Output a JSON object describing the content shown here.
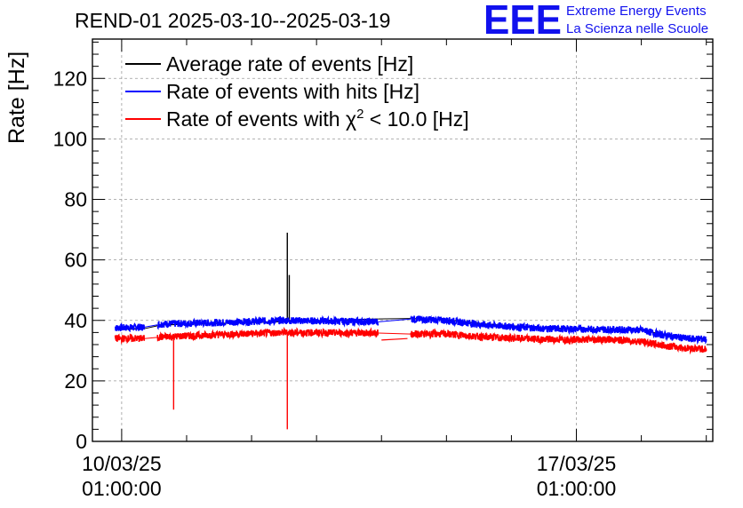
{
  "chart_data": {
    "type": "line",
    "title": "REND-01 2025-03-10--2025-03-19",
    "ylabel": "Rate [Hz]",
    "xlabel": "",
    "ylim": [
      0,
      133
    ],
    "xlim_days": [
      -0.45,
      9.1
    ],
    "yticks": [
      0,
      20,
      40,
      60,
      80,
      100,
      120
    ],
    "ytick_labels": [
      "0",
      "20",
      "40",
      "60",
      "80",
      "100",
      "120"
    ],
    "xticks": [
      {
        "day": 0,
        "date": "10/03/25",
        "time": "01:00:00"
      },
      {
        "day": 7,
        "date": "17/03/25",
        "time": "01:00:00"
      }
    ],
    "grid": true,
    "legend": [
      {
        "label": "Average rate of events [Hz]",
        "color": "#000000"
      },
      {
        "label": "Rate of events with hits [Hz]",
        "color": "#0000ff"
      },
      {
        "label_pre": "Rate of events with χ",
        "label_sup": "2",
        "label_post": " < 10.0 [Hz]",
        "color": "#ff0000"
      }
    ],
    "series": [
      {
        "name": "Average rate of events [Hz]",
        "color": "#000000",
        "points": [
          [
            -0.1,
            37.0
          ],
          [
            0.4,
            37.3
          ],
          [
            0.6,
            38.5
          ],
          [
            1.5,
            39.0
          ],
          [
            2.5,
            39.6
          ],
          [
            4.0,
            40.5
          ],
          [
            4.2,
            40.8
          ],
          [
            5.0,
            40.2
          ],
          [
            5.6,
            38.8
          ],
          [
            6.5,
            37.5
          ],
          [
            7.5,
            37.0
          ],
          [
            8.0,
            36.8
          ],
          [
            8.3,
            35.5
          ],
          [
            8.7,
            34.2
          ],
          [
            9.0,
            34.0
          ]
        ],
        "spikes": [
          [
            2.55,
            69.0
          ],
          [
            2.58,
            55.0
          ]
        ]
      },
      {
        "name": "Rate of events with hits [Hz]",
        "color": "#0000ff",
        "noise": 1.2,
        "points": [
          [
            -0.1,
            37.5
          ],
          [
            0.4,
            37.8
          ],
          [
            0.6,
            38.8
          ],
          [
            1.5,
            39.3
          ],
          [
            2.5,
            40.0
          ],
          [
            4.0,
            39.5
          ],
          [
            4.2,
            39.3
          ],
          [
            4.4,
            40.5
          ],
          [
            5.0,
            40.0
          ],
          [
            5.6,
            38.5
          ],
          [
            6.5,
            37.3
          ],
          [
            7.5,
            37.0
          ],
          [
            8.0,
            36.8
          ],
          [
            8.3,
            35.3
          ],
          [
            8.7,
            34.0
          ],
          [
            9.0,
            33.8
          ]
        ]
      },
      {
        "name": "Rate of events with χ2 < 10.0 [Hz]",
        "color": "#ff0000",
        "noise": 1.2,
        "points": [
          [
            -0.1,
            34.0
          ],
          [
            0.4,
            34.0
          ],
          [
            0.6,
            34.5
          ],
          [
            1.5,
            35.3
          ],
          [
            2.5,
            36.0
          ],
          [
            4.0,
            35.8
          ],
          [
            4.2,
            35.5
          ],
          [
            4.4,
            35.5
          ],
          [
            5.0,
            35.5
          ],
          [
            5.6,
            34.5
          ],
          [
            6.5,
            33.7
          ],
          [
            7.5,
            33.7
          ],
          [
            8.0,
            33.0
          ],
          [
            8.3,
            31.8
          ],
          [
            8.7,
            30.8
          ],
          [
            9.0,
            30.5
          ]
        ],
        "dips": [
          [
            0.8,
            10.5
          ],
          [
            2.55,
            4.0
          ]
        ],
        "gap_segment": [
          [
            4.0,
            33.5
          ],
          [
            4.4,
            34.0
          ]
        ]
      }
    ]
  },
  "logo": {
    "text": "EEE",
    "line1": "Extreme Energy Events",
    "line2": "La Scienza nelle Scuole",
    "color": "#1111ee"
  }
}
